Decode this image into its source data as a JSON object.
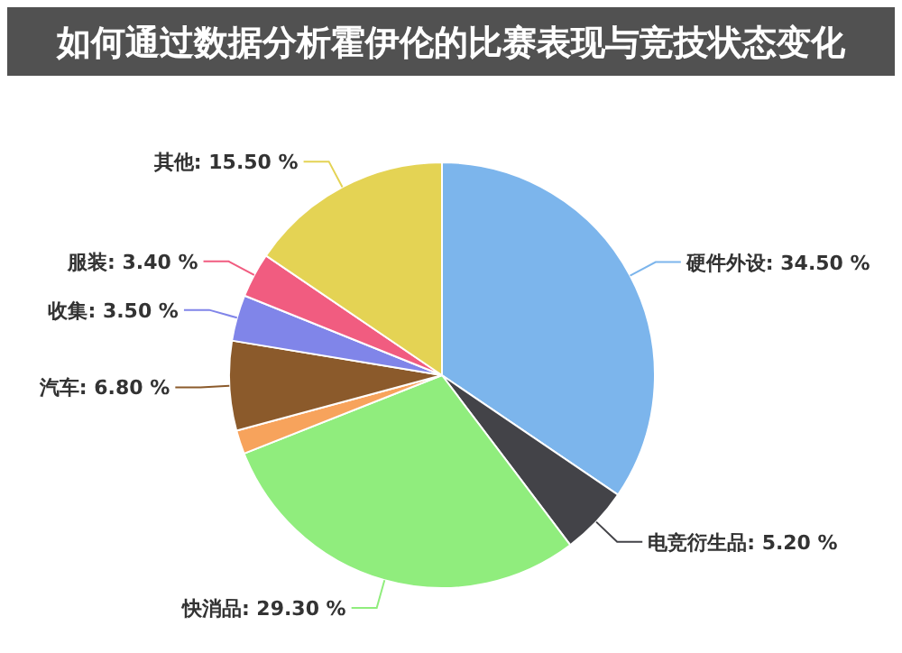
{
  "chart_data": {
    "type": "pie",
    "title": "如何通过数据分析霍伊伦的比赛表现与竞技状态变化",
    "categories": [
      "硬件外设",
      "电竞衍生品",
      "快消品",
      null,
      "汽车",
      "收集",
      "服装",
      "其他"
    ],
    "values": [
      34.5,
      5.2,
      29.3,
      1.8,
      6.8,
      3.5,
      3.4,
      15.5
    ],
    "value_labels": [
      "34.50 %",
      "5.20 %",
      "29.30 %",
      null,
      "6.80 %",
      "3.50 %",
      "3.40 %",
      "15.50 %"
    ],
    "colors": [
      "#7cb5ec",
      "#434348",
      "#90ed7d",
      "#f7a35c",
      "#8b5a2b",
      "#8085e9",
      "#f15c80",
      "#e4d354"
    ]
  }
}
